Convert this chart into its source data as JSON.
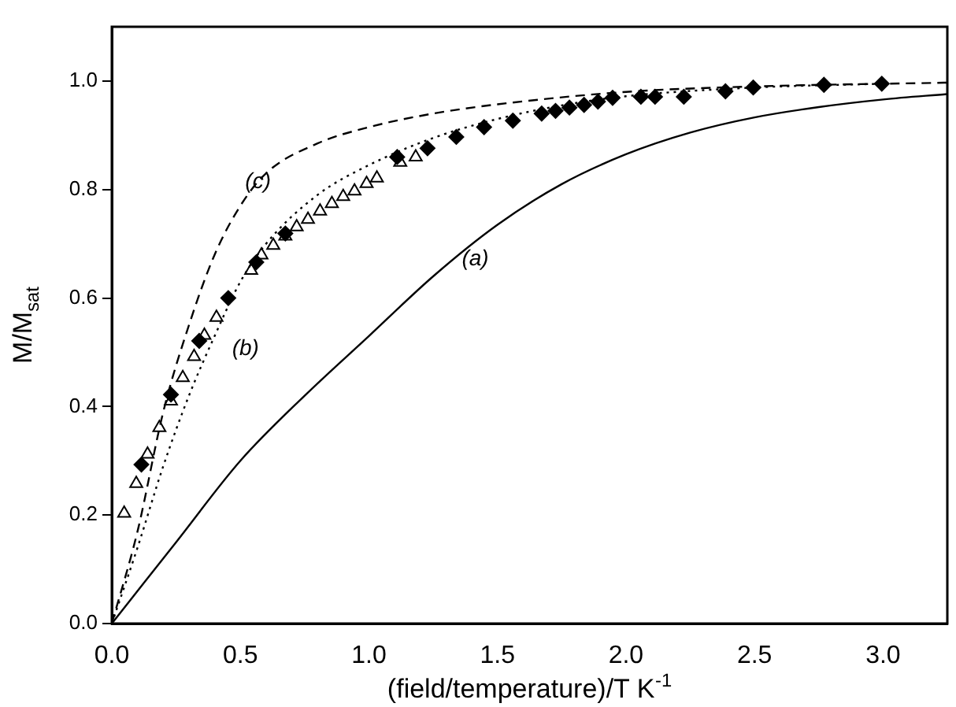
{
  "chart_data": {
    "type": "line",
    "xlabel": "(field/temperature)/T K$^{-1}$",
    "ylabel": "M/M$_{sat}$",
    "xlim": [
      0,
      3.25
    ],
    "ylim": [
      0,
      1.1
    ],
    "xticks": [
      {
        "value": 0,
        "label": "0.0"
      },
      {
        "value": 0.5,
        "label": "0.5"
      },
      {
        "value": 1,
        "label": "1.0"
      },
      {
        "value": 1.5,
        "label": "1.5"
      },
      {
        "value": 2,
        "label": "2.0"
      },
      {
        "value": 2.5,
        "label": "2.5"
      },
      {
        "value": 3,
        "label": "3.0"
      }
    ],
    "yticks": [
      {
        "value": 0,
        "label": "0.0"
      },
      {
        "value": 0.2,
        "label": "0.2"
      },
      {
        "value": 0.4,
        "label": "0.4"
      },
      {
        "value": 0.6,
        "label": "0.6"
      },
      {
        "value": 0.8,
        "label": "0.8"
      },
      {
        "value": 1,
        "label": "1.0"
      }
    ],
    "grid": false,
    "legend": false,
    "series": [
      {
        "color": "#000000",
        "line_style": "solid",
        "marker": "none",
        "x": [
          0,
          0.25,
          0.5,
          0.75,
          1,
          1.25,
          1.5,
          1.75,
          2,
          2.25,
          2.5,
          2.75,
          3,
          3.25
        ],
        "values": [
          0,
          0.15,
          0.3,
          0.42,
          0.53,
          0.64,
          0.735,
          0.81,
          0.865,
          0.905,
          0.933,
          0.952,
          0.966,
          0.976
        ]
      },
      {
        "color": "#000000",
        "line_style": "dotted",
        "marker": "none",
        "x": [
          0,
          0.1,
          0.2,
          0.3,
          0.4,
          0.5,
          0.6,
          0.8,
          1,
          1.25,
          1.5,
          1.75,
          2,
          2.5,
          3
        ],
        "values": [
          0,
          0.14,
          0.29,
          0.42,
          0.53,
          0.63,
          0.7,
          0.79,
          0.845,
          0.895,
          0.93,
          0.955,
          0.972,
          0.988,
          0.995
        ]
      },
      {
        "color": "#000000",
        "line_style": "dashed",
        "marker": "none",
        "x": [
          0,
          0.1,
          0.2,
          0.3,
          0.4,
          0.5,
          0.6,
          0.8,
          1,
          1.25,
          1.5,
          2,
          2.5,
          3.25
        ],
        "values": [
          0,
          0.17,
          0.39,
          0.55,
          0.68,
          0.77,
          0.83,
          0.885,
          0.915,
          0.94,
          0.957,
          0.98,
          0.99,
          0.997
        ]
      },
      {
        "type": "scatter",
        "color": "#000000",
        "marker": "diamond",
        "x": [
          0.115,
          0.23,
          0.34,
          0.453,
          0.562,
          0.675,
          1.11,
          1.228,
          1.34,
          1.448,
          1.56,
          1.672,
          1.726,
          1.78,
          1.837,
          1.891,
          1.948,
          2.058,
          2.113,
          2.225,
          2.387,
          2.495,
          2.77,
          2.995
        ],
        "values": [
          0.293,
          0.422,
          0.521,
          0.6,
          0.666,
          0.719,
          0.86,
          0.876,
          0.897,
          0.915,
          0.927,
          0.94,
          0.945,
          0.951,
          0.956,
          0.962,
          0.969,
          0.971,
          0.971,
          0.971,
          0.981,
          0.988,
          0.993,
          0.995
        ]
      },
      {
        "type": "scatter",
        "color": "#000000",
        "marker": "triangle",
        "x": [
          0.048,
          0.095,
          0.139,
          0.185,
          0.23,
          0.276,
          0.32,
          0.36,
          0.407,
          0.542,
          0.582,
          0.628,
          0.675,
          0.719,
          0.763,
          0.81,
          0.856,
          0.9,
          0.944,
          0.991,
          1.031,
          1.122,
          1.182
        ],
        "values": [
          0.203,
          0.258,
          0.312,
          0.361,
          0.41,
          0.453,
          0.492,
          0.531,
          0.564,
          0.651,
          0.679,
          0.697,
          0.714,
          0.731,
          0.745,
          0.76,
          0.774,
          0.787,
          0.797,
          0.811,
          0.821,
          0.85,
          0.86
        ]
      }
    ],
    "annotations": [
      "(a)",
      "(b)",
      "(c)"
    ]
  }
}
